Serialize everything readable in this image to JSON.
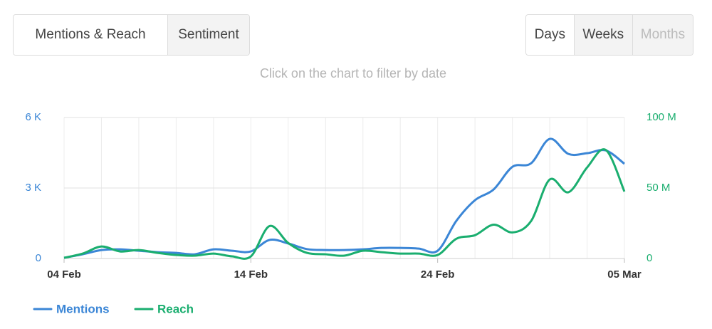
{
  "tabs": [
    "Mentions & Reach",
    "Sentiment"
  ],
  "periods": [
    "Days",
    "Weeks",
    "Months"
  ],
  "chart_data": {
    "type": "line",
    "subtitle": "Click on the chart to filter by date",
    "categories": [
      "04 Feb",
      null,
      null,
      null,
      null,
      null,
      null,
      null,
      null,
      null,
      "14 Feb",
      null,
      null,
      null,
      null,
      null,
      null,
      null,
      null,
      null,
      "24 Feb",
      null,
      null,
      null,
      null,
      null,
      null,
      null,
      null,
      null,
      "05 Mar"
    ],
    "series": [
      {
        "name": "Mentions",
        "color": "#3b86d6",
        "axis": "y",
        "values": [
          30,
          180,
          360,
          390,
          330,
          270,
          240,
          180,
          390,
          330,
          300,
          790,
          640,
          400,
          360,
          360,
          390,
          450,
          450,
          420,
          330,
          1600,
          2480,
          2940,
          3900,
          4050,
          5090,
          4450,
          4480,
          4600,
          4030
        ]
      },
      {
        "name": "Reach",
        "color": "#1aae6f",
        "axis": "y2",
        "values": [
          0.5,
          3.5,
          8.5,
          5,
          6,
          4,
          2.5,
          2,
          3.5,
          1.5,
          1.5,
          23,
          11,
          4,
          3,
          2,
          5.5,
          4.5,
          3.5,
          3.5,
          2.5,
          14,
          16.5,
          24,
          18.5,
          26.5,
          56,
          47,
          64.5,
          77,
          47.5
        ]
      }
    ],
    "ylim": [
      0,
      6000
    ],
    "yticks": [
      0,
      {
        "value": 3000,
        "label": "3 K"
      },
      {
        "value": 6000,
        "label": "6 K"
      }
    ],
    "y2lim": [
      0,
      100
    ],
    "y2ticks": [
      0,
      {
        "value": 50,
        "label": "50 M"
      },
      {
        "value": 100,
        "label": "100 M"
      }
    ],
    "grid": true,
    "legend": "bottom-left"
  }
}
